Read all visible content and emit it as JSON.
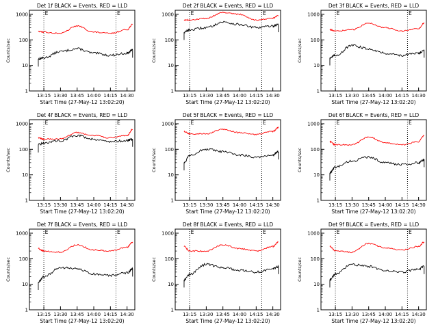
{
  "charts": {
    "xlabel": "Start Time (27-May-12 13:02:20)",
    "ylabel": "Counts/sec",
    "x_ticks": [
      "13:15",
      "13:30",
      "13:45",
      "14:00",
      "14:15",
      "14:30"
    ],
    "y_ticks": [
      "1",
      "10",
      "100",
      "1000"
    ],
    "marker": "E"
  },
  "chart_data": [
    {
      "type": "line",
      "title": "Det 1f BLACK = Events, RED = LLD",
      "x": [
        "13:10",
        "13:15",
        "13:30",
        "13:45",
        "14:00",
        "14:15",
        "14:30",
        "14:35"
      ],
      "xlim": [
        "13:02",
        "14:37"
      ],
      "ylim": [
        1,
        1000
      ],
      "yscale": "log",
      "vlines": [
        "13:15",
        "14:20"
      ],
      "series": [
        {
          "name": "Events",
          "color": "#000000",
          "values": [
            18,
            20,
            35,
            45,
            30,
            25,
            30,
            40
          ]
        },
        {
          "name": "LLD",
          "color": "#ff0000",
          "values": [
            220,
            200,
            180,
            350,
            200,
            180,
            250,
            400
          ]
        }
      ]
    },
    {
      "type": "line",
      "title": "Det 2f BLACK = Events, RED = LLD",
      "x": [
        "13:10",
        "13:15",
        "13:30",
        "13:45",
        "14:00",
        "14:15",
        "14:30",
        "14:35"
      ],
      "xlim": [
        "13:02",
        "14:37"
      ],
      "ylim": [
        1,
        1000
      ],
      "yscale": "log",
      "vlines": [
        "13:15",
        "14:20"
      ],
      "series": [
        {
          "name": "Events",
          "color": "#000000",
          "values": [
            200,
            250,
            300,
            500,
            400,
            300,
            350,
            400
          ]
        },
        {
          "name": "LLD",
          "color": "#ff0000",
          "values": [
            600,
            600,
            700,
            1200,
            1000,
            600,
            700,
            900
          ]
        }
      ]
    },
    {
      "type": "line",
      "title": "Det 3f BLACK = Events, RED = LLD",
      "x": [
        "13:10",
        "13:15",
        "13:30",
        "13:45",
        "14:00",
        "14:15",
        "14:30",
        "14:35"
      ],
      "xlim": [
        "13:02",
        "14:37"
      ],
      "ylim": [
        1,
        1000
      ],
      "yscale": "log",
      "vlines": [
        "13:15",
        "14:20"
      ],
      "series": [
        {
          "name": "Events",
          "color": "#000000",
          "values": [
            20,
            25,
            60,
            45,
            30,
            25,
            30,
            40
          ]
        },
        {
          "name": "LLD",
          "color": "#ff0000",
          "values": [
            250,
            220,
            250,
            450,
            300,
            220,
            280,
            450
          ]
        }
      ]
    },
    {
      "type": "line",
      "title": "Det 4f BLACK = Events, RED = LLD",
      "x": [
        "13:10",
        "13:15",
        "13:30",
        "13:45",
        "14:00",
        "14:15",
        "14:30",
        "14:35"
      ],
      "xlim": [
        "13:02",
        "14:37"
      ],
      "ylim": [
        1,
        1000
      ],
      "yscale": "log",
      "vlines": [
        "13:15",
        "14:20"
      ],
      "series": [
        {
          "name": "Events",
          "color": "#000000",
          "values": [
            150,
            180,
            220,
            350,
            250,
            200,
            220,
            250
          ]
        },
        {
          "name": "LLD",
          "color": "#ff0000",
          "values": [
            280,
            250,
            260,
            450,
            350,
            280,
            350,
            600
          ]
        }
      ]
    },
    {
      "type": "line",
      "title": "Det 5f BLACK = Events, RED = LLD",
      "x": [
        "13:10",
        "13:15",
        "13:30",
        "13:45",
        "14:00",
        "14:15",
        "14:30",
        "14:35"
      ],
      "xlim": [
        "13:02",
        "14:37"
      ],
      "ylim": [
        1,
        1000
      ],
      "yscale": "log",
      "vlines": [
        "13:15",
        "14:20"
      ],
      "series": [
        {
          "name": "Events",
          "color": "#000000",
          "values": [
            30,
            60,
            100,
            80,
            60,
            50,
            60,
            80
          ]
        },
        {
          "name": "LLD",
          "color": "#ff0000",
          "values": [
            500,
            400,
            400,
            600,
            450,
            380,
            500,
            700
          ]
        }
      ]
    },
    {
      "type": "line",
      "title": "Det 6f BLACK = Events, RED = LLD",
      "x": [
        "13:10",
        "13:15",
        "13:30",
        "13:45",
        "14:00",
        "14:15",
        "14:30",
        "14:35"
      ],
      "xlim": [
        "13:02",
        "14:37"
      ],
      "ylim": [
        1,
        1000
      ],
      "yscale": "log",
      "vlines": [
        "13:15",
        "14:20"
      ],
      "series": [
        {
          "name": "Events",
          "color": "#000000",
          "values": [
            12,
            20,
            35,
            50,
            30,
            25,
            30,
            40
          ]
        },
        {
          "name": "LLD",
          "color": "#ff0000",
          "values": [
            200,
            150,
            150,
            300,
            180,
            150,
            200,
            350
          ]
        }
      ]
    },
    {
      "type": "line",
      "title": "Det 7f BLACK = Events, RED = LLD",
      "x": [
        "13:10",
        "13:15",
        "13:30",
        "13:45",
        "14:00",
        "14:15",
        "14:30",
        "14:35"
      ],
      "xlim": [
        "13:02",
        "14:37"
      ],
      "ylim": [
        1,
        1000
      ],
      "yscale": "log",
      "vlines": [
        "13:15",
        "14:20"
      ],
      "series": [
        {
          "name": "Events",
          "color": "#000000",
          "values": [
            12,
            20,
            45,
            40,
            25,
            22,
            28,
            40
          ]
        },
        {
          "name": "LLD",
          "color": "#ff0000",
          "values": [
            250,
            200,
            180,
            350,
            220,
            200,
            280,
            450
          ]
        }
      ]
    },
    {
      "type": "line",
      "title": "Det 8f BLACK = Events, RED = LLD",
      "x": [
        "13:10",
        "13:15",
        "13:30",
        "13:45",
        "14:00",
        "14:15",
        "14:30",
        "14:35"
      ],
      "xlim": [
        "13:02",
        "14:37"
      ],
      "ylim": [
        1,
        1000
      ],
      "yscale": "log",
      "vlines": [
        "13:15",
        "14:20"
      ],
      "series": [
        {
          "name": "Events",
          "color": "#000000",
          "values": [
            15,
            25,
            60,
            45,
            35,
            30,
            40,
            50
          ]
        },
        {
          "name": "LLD",
          "color": "#ff0000",
          "values": [
            300,
            200,
            200,
            350,
            250,
            200,
            300,
            450
          ]
        }
      ]
    },
    {
      "type": "line",
      "title": "Det 9f BLACK = Events, RED = LLD",
      "x": [
        "13:10",
        "13:15",
        "13:30",
        "13:45",
        "14:00",
        "14:15",
        "14:30",
        "14:35"
      ],
      "xlim": [
        "13:02",
        "14:37"
      ],
      "ylim": [
        1,
        1000
      ],
      "yscale": "log",
      "vlines": [
        "13:15",
        "14:20"
      ],
      "series": [
        {
          "name": "Events",
          "color": "#000000",
          "values": [
            15,
            25,
            60,
            50,
            35,
            30,
            40,
            50
          ]
        },
        {
          "name": "LLD",
          "color": "#ff0000",
          "values": [
            300,
            200,
            180,
            400,
            260,
            220,
            300,
            450
          ]
        }
      ]
    }
  ]
}
